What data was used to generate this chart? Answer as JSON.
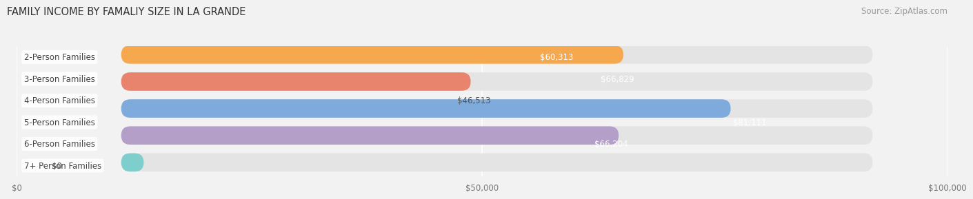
{
  "title": "FAMILY INCOME BY FAMALIY SIZE IN LA GRANDE",
  "source": "Source: ZipAtlas.com",
  "categories": [
    "2-Person Families",
    "3-Person Families",
    "4-Person Families",
    "5-Person Families",
    "6-Person Families",
    "7+ Person Families"
  ],
  "values": [
    60313,
    66829,
    46513,
    81111,
    66204,
    0
  ],
  "bar_colors": [
    "#f570a2",
    "#f5a84e",
    "#e8836e",
    "#7eaadc",
    "#b49fc8",
    "#7ecece"
  ],
  "value_labels": [
    "$60,313",
    "$66,829",
    "$46,513",
    "$81,111",
    "$66,204",
    "$0"
  ],
  "xlim": [
    0,
    100000
  ],
  "xtick_values": [
    0,
    50000,
    100000
  ],
  "xtick_labels": [
    "$0",
    "$50,000",
    "$100,000"
  ],
  "background_color": "#f2f2f2",
  "bar_background": "#e4e4e4",
  "title_fontsize": 10.5,
  "source_fontsize": 8.5,
  "label_fontsize": 8.5,
  "value_fontsize": 8.5,
  "bar_height": 0.68,
  "bar_gap": 0.12
}
